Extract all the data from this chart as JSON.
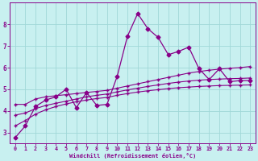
{
  "xlabel": "Windchill (Refroidissement éolien,°C)",
  "bg_color": "#c8f0f0",
  "grid_color": "#a0d8d8",
  "line_color": "#880088",
  "xlim": [
    -0.5,
    23.5
  ],
  "ylim": [
    2.5,
    9.0
  ],
  "yticks": [
    3,
    4,
    5,
    6,
    7,
    8
  ],
  "xticks": [
    0,
    1,
    2,
    3,
    4,
    5,
    6,
    7,
    8,
    9,
    10,
    11,
    12,
    13,
    14,
    15,
    16,
    17,
    18,
    19,
    20,
    21,
    22,
    23
  ],
  "series_jagged_x": [
    0,
    1,
    2,
    3,
    4,
    5,
    6,
    7,
    8,
    9,
    10,
    11,
    12,
    13,
    14,
    15,
    16,
    17,
    18,
    19,
    20,
    21,
    22,
    23
  ],
  "series_jagged_y": [
    2.75,
    3.3,
    4.2,
    4.5,
    4.65,
    5.0,
    4.15,
    4.85,
    4.25,
    4.3,
    5.6,
    7.45,
    8.5,
    7.8,
    7.4,
    6.6,
    6.75,
    6.95,
    5.95,
    5.45,
    5.95,
    5.35,
    5.4,
    5.4
  ],
  "curve1_x": [
    0,
    1,
    2,
    3,
    4,
    5,
    6,
    7,
    8,
    9,
    10,
    11,
    12,
    13,
    14,
    15,
    16,
    17,
    18,
    19,
    20,
    21,
    22,
    23
  ],
  "curve1_y": [
    4.3,
    4.3,
    4.55,
    4.65,
    4.7,
    4.75,
    4.8,
    4.85,
    4.9,
    4.95,
    5.05,
    5.15,
    5.25,
    5.35,
    5.45,
    5.55,
    5.65,
    5.75,
    5.82,
    5.88,
    5.93,
    5.97,
    6.0,
    6.05
  ],
  "curve2_x": [
    0,
    1,
    2,
    3,
    4,
    5,
    6,
    7,
    8,
    9,
    10,
    11,
    12,
    13,
    14,
    15,
    16,
    17,
    18,
    19,
    20,
    21,
    22,
    23
  ],
  "curve2_y": [
    3.8,
    3.9,
    4.1,
    4.25,
    4.35,
    4.45,
    4.55,
    4.65,
    4.72,
    4.78,
    4.88,
    4.97,
    5.05,
    5.13,
    5.2,
    5.27,
    5.33,
    5.38,
    5.42,
    5.45,
    5.47,
    5.49,
    5.5,
    5.52
  ],
  "curve3_x": [
    0,
    1,
    2,
    3,
    4,
    5,
    6,
    7,
    8,
    9,
    10,
    11,
    12,
    13,
    14,
    15,
    16,
    17,
    18,
    19,
    20,
    21,
    22,
    23
  ],
  "curve3_y": [
    3.3,
    3.55,
    3.85,
    4.05,
    4.2,
    4.32,
    4.42,
    4.5,
    4.57,
    4.62,
    4.72,
    4.8,
    4.87,
    4.93,
    4.98,
    5.03,
    5.07,
    5.1,
    5.13,
    5.15,
    5.17,
    5.18,
    5.19,
    5.2
  ]
}
